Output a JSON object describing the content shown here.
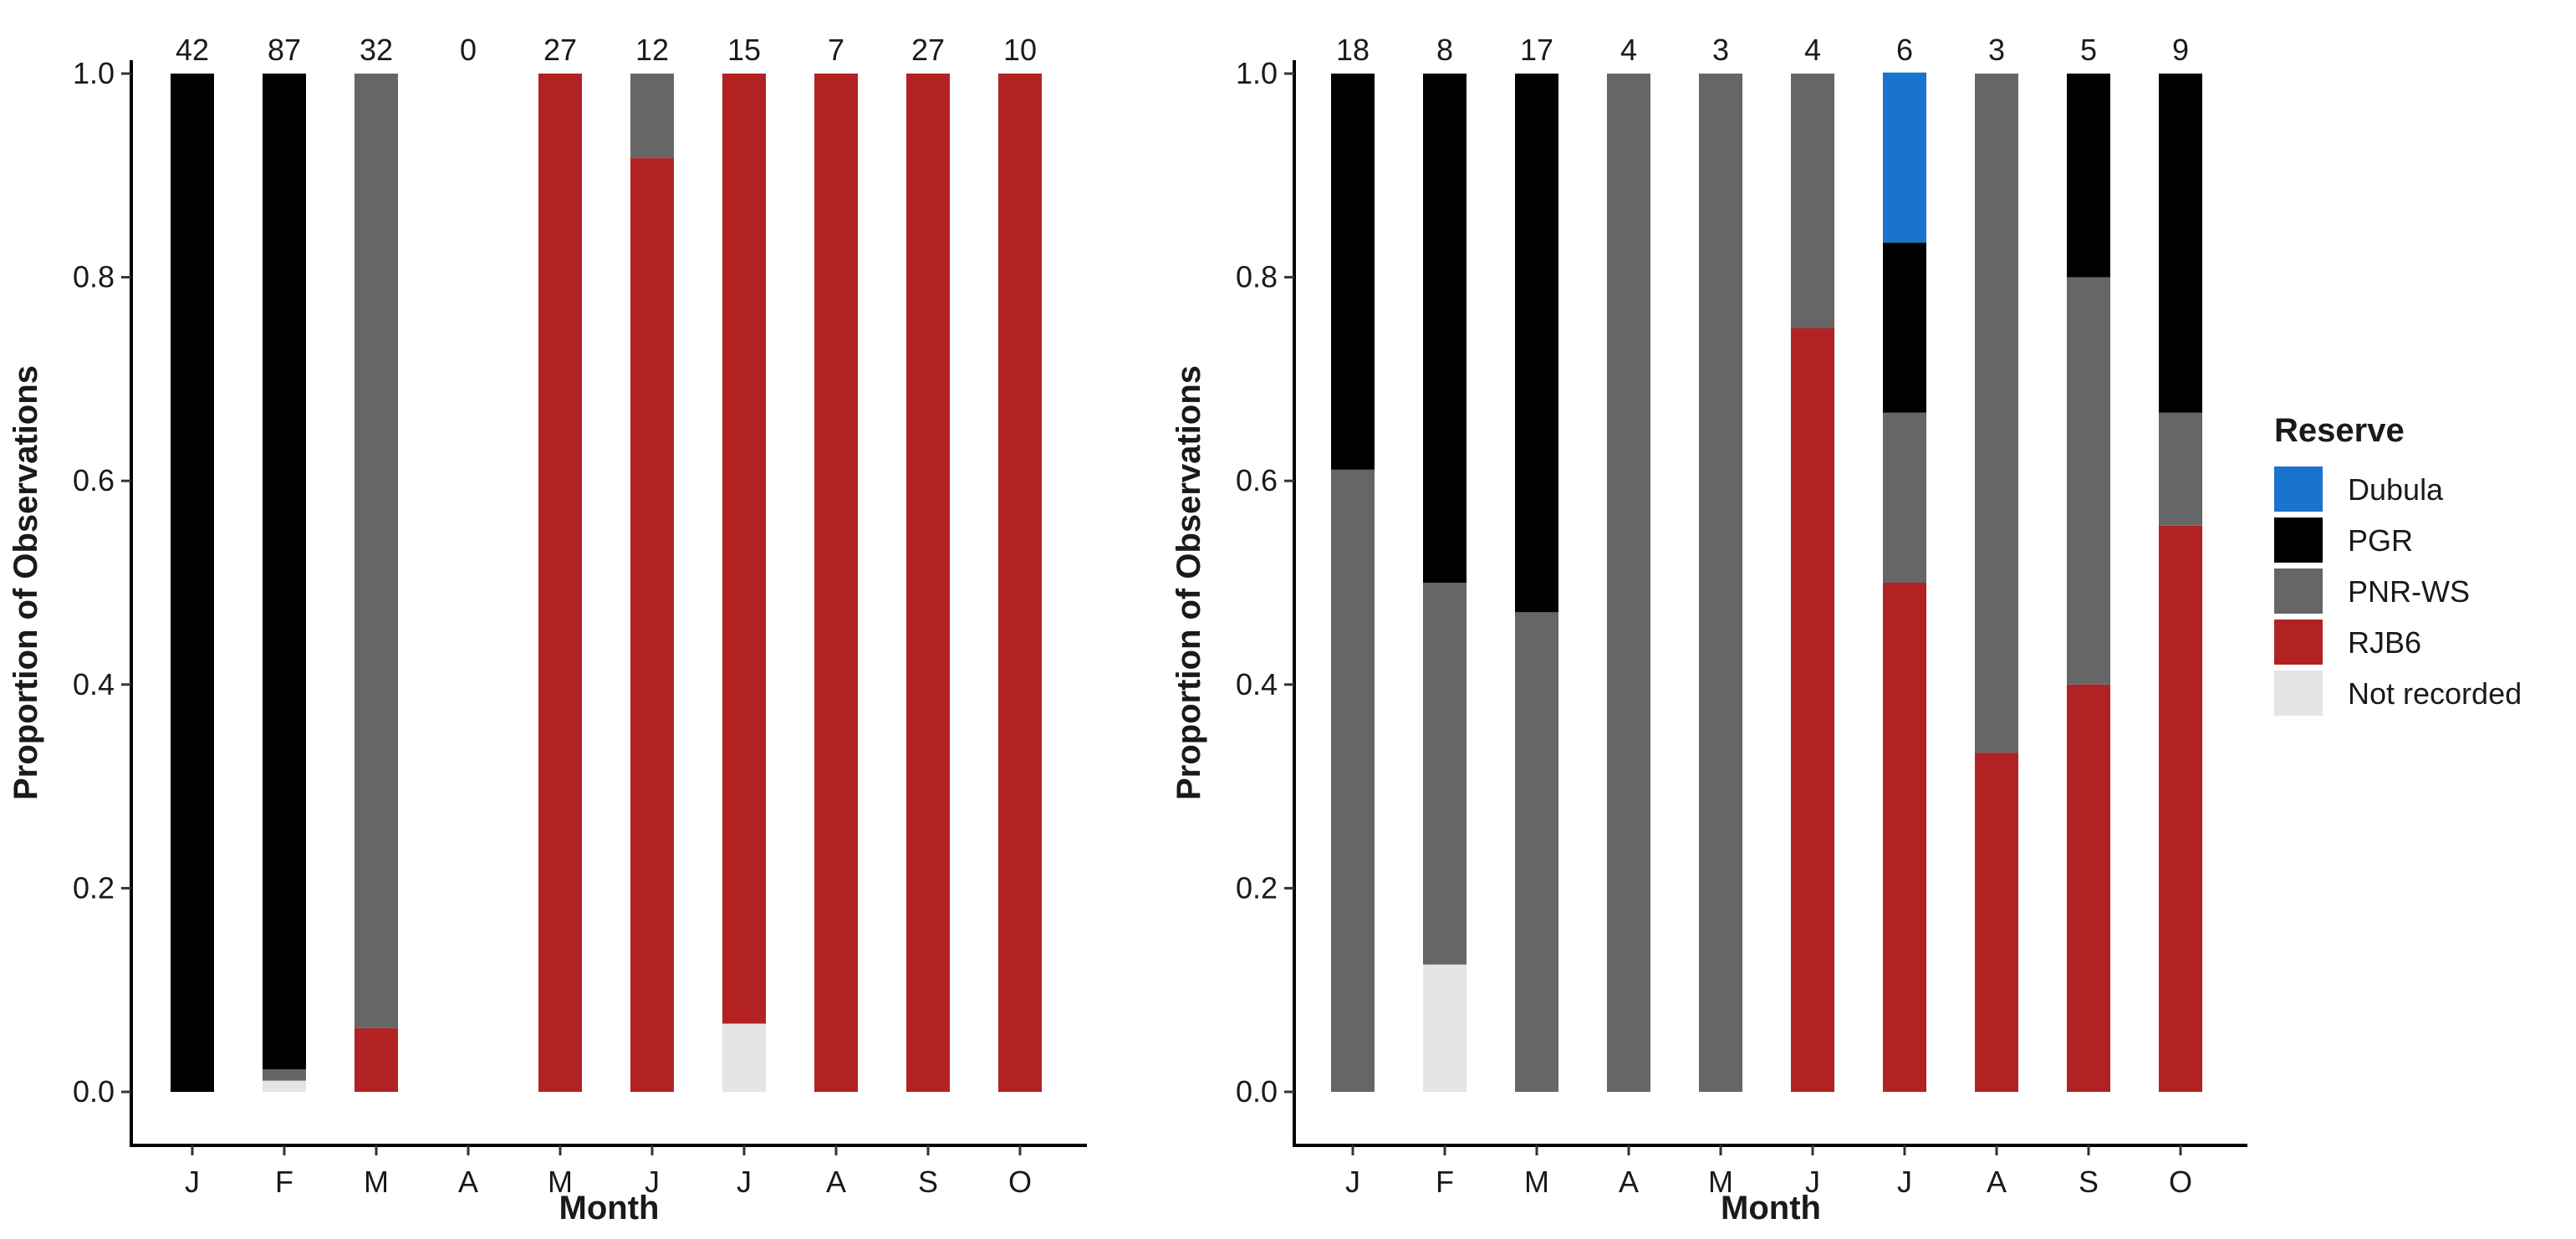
{
  "chart_data": [
    {
      "type": "bar",
      "stacked": true,
      "title": "",
      "xlabel": "Month",
      "ylabel": "Proportion of Observations",
      "ylim": [
        0,
        1
      ],
      "yticks": [
        "0.0",
        "0.2",
        "0.4",
        "0.6",
        "0.8",
        "1.0"
      ],
      "categories": [
        "J",
        "F",
        "M",
        "A",
        "M",
        "J",
        "J",
        "A",
        "S",
        "O"
      ],
      "counts": [
        "42",
        "87",
        "32",
        "0",
        "27",
        "12",
        "15",
        "7",
        "27",
        "10"
      ],
      "series": [
        {
          "name": "Not recorded",
          "values": [
            0,
            0.011,
            0,
            0,
            0,
            0,
            0.067,
            0,
            0,
            0
          ]
        },
        {
          "name": "RJB6",
          "values": [
            0,
            0,
            0.0625,
            0,
            1,
            0.917,
            0.933,
            1,
            1,
            1
          ]
        },
        {
          "name": "PNR-WS",
          "values": [
            0,
            0.011,
            0.9375,
            0,
            0,
            0.083,
            0,
            0,
            0,
            0
          ]
        },
        {
          "name": "PGR",
          "values": [
            1,
            0.978,
            0,
            0,
            0,
            0,
            0,
            0,
            0,
            0
          ]
        },
        {
          "name": "Dubula",
          "values": [
            0,
            0,
            0,
            0,
            0,
            0,
            0,
            0,
            0,
            0
          ]
        }
      ]
    },
    {
      "type": "bar",
      "stacked": true,
      "title": "",
      "xlabel": "Month",
      "ylabel": "Proportion of Observations",
      "ylim": [
        0,
        1
      ],
      "yticks": [
        "0.0",
        "0.2",
        "0.4",
        "0.6",
        "0.8",
        "1.0"
      ],
      "categories": [
        "J",
        "F",
        "M",
        "A",
        "M",
        "J",
        "J",
        "A",
        "S",
        "O"
      ],
      "counts": [
        "18",
        "8",
        "17",
        "4",
        "3",
        "4",
        "6",
        "3",
        "5",
        "9"
      ],
      "series": [
        {
          "name": "Not recorded",
          "values": [
            0,
            0.125,
            0,
            0,
            0,
            0,
            0,
            0,
            0,
            0
          ]
        },
        {
          "name": "RJB6",
          "values": [
            0,
            0,
            0,
            0,
            0,
            0.75,
            0.5,
            0.333,
            0.4,
            0.556
          ]
        },
        {
          "name": "PNR-WS",
          "values": [
            0.611,
            0.375,
            0.471,
            1,
            1,
            0.25,
            0.167,
            0.667,
            0.4,
            0.111
          ]
        },
        {
          "name": "PGR",
          "values": [
            0.389,
            0.5,
            0.529,
            0,
            0,
            0,
            0.167,
            0,
            0.2,
            0.333
          ]
        },
        {
          "name": "Dubula",
          "values": [
            0,
            0,
            0,
            0,
            0,
            0,
            0.167,
            0,
            0,
            0
          ]
        }
      ]
    }
  ],
  "legend": {
    "title": "Reserve",
    "placement": "right",
    "items": [
      {
        "name": "Dubula",
        "color": "#1874CD"
      },
      {
        "name": "PGR",
        "color": "#000000"
      },
      {
        "name": "PNR-WS",
        "color": "#666666"
      },
      {
        "name": "RJB6",
        "color": "#B22222"
      },
      {
        "name": "Not recorded",
        "color": "#E5E5E5"
      }
    ]
  }
}
